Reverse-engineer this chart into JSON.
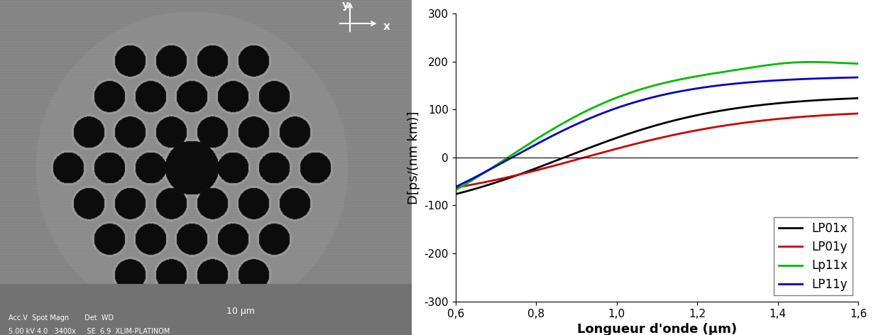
{
  "title": "",
  "xlabel": "Longueur d'onde (μm)",
  "ylabel": "D[ps/(nm km)]",
  "xlim": [
    0.6,
    1.6
  ],
  "ylim": [
    -300,
    300
  ],
  "xticks": [
    0.6,
    0.8,
    1.0,
    1.2,
    1.4,
    1.6
  ],
  "xtick_labels": [
    "0,6",
    "0,8",
    "1,0",
    "1,2",
    "1,4",
    "1,6"
  ],
  "yticks": [
    -300,
    -200,
    -100,
    0,
    100,
    200,
    300
  ],
  "legend_labels": [
    "LP01x",
    "LP01y",
    "Lp11x",
    "LP11y"
  ],
  "line_colors": [
    "#000000",
    "#cc0000",
    "#00bb00",
    "#0000cc"
  ],
  "line_width": 2.0,
  "background_color": "#ffffff",
  "SEM_bg_color": "#888888",
  "axis_fontsize": 13,
  "legend_fontsize": 12,
  "tick_fontsize": 11
}
